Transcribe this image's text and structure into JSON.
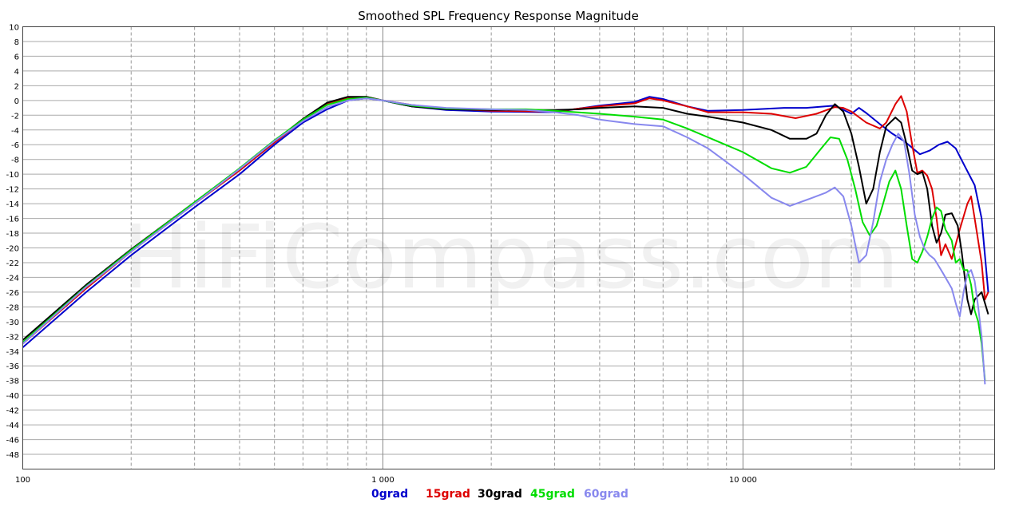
{
  "chart_data": {
    "type": "line",
    "title": "Smoothed SPL Frequency Response Magnitude",
    "watermark": "HiFiCompass.com",
    "xscale": "log",
    "xlim": [
      100,
      50000
    ],
    "ylim": [
      -50,
      10
    ],
    "y_ticks": [
      10,
      8,
      6,
      4,
      2,
      0,
      -2,
      -4,
      -6,
      -8,
      -10,
      -12,
      -14,
      -16,
      -18,
      -20,
      -22,
      -24,
      -26,
      -28,
      -30,
      -32,
      -34,
      -36,
      -38,
      -40,
      -42,
      -44,
      -46,
      -48
    ],
    "y_tick_labels": [
      "10",
      "8",
      "6",
      "4",
      "2",
      "0",
      "-2",
      "-4",
      "-6",
      "-8",
      "-10",
      "-12",
      "-14",
      "-16",
      "-18",
      "-20",
      "-22",
      "-24",
      "-26",
      "-28",
      "-30",
      "-32",
      "-34",
      "-36",
      "-38",
      "-40",
      "-42",
      "-44",
      "-46",
      "-48"
    ],
    "x_ticks": [
      100,
      1000,
      10000
    ],
    "x_tick_labels": [
      "100",
      "1 000",
      "10 000"
    ],
    "grid": true,
    "legend_placement": "bottom-center",
    "series": [
      {
        "name": "0grad",
        "color": "#0000cc",
        "points": [
          [
            100,
            -33.5
          ],
          [
            150,
            -26
          ],
          [
            200,
            -21
          ],
          [
            300,
            -14.5
          ],
          [
            400,
            -10
          ],
          [
            500,
            -6
          ],
          [
            600,
            -3
          ],
          [
            700,
            -1.2
          ],
          [
            800,
            0
          ],
          [
            900,
            0.3
          ],
          [
            1000,
            0
          ],
          [
            1200,
            -0.8
          ],
          [
            1500,
            -1.3
          ],
          [
            2000,
            -1.5
          ],
          [
            3000,
            -1.6
          ],
          [
            3500,
            -1.1
          ],
          [
            4000,
            -0.7
          ],
          [
            5000,
            -0.2
          ],
          [
            5500,
            0.5
          ],
          [
            6000,
            0.2
          ],
          [
            7000,
            -0.8
          ],
          [
            8000,
            -1.4
          ],
          [
            10000,
            -1.3
          ],
          [
            13000,
            -1
          ],
          [
            15000,
            -1
          ],
          [
            18000,
            -0.7
          ],
          [
            20000,
            -1.8
          ],
          [
            21000,
            -1
          ],
          [
            22000,
            -1.7
          ],
          [
            24000,
            -3.2
          ],
          [
            26000,
            -4.5
          ],
          [
            28000,
            -5.5
          ],
          [
            31000,
            -7.3
          ],
          [
            33000,
            -6.8
          ],
          [
            35000,
            -6
          ],
          [
            37000,
            -5.6
          ],
          [
            39000,
            -6.5
          ],
          [
            41000,
            -8.6
          ],
          [
            44000,
            -11.5
          ],
          [
            46000,
            -16
          ],
          [
            48000,
            -26
          ]
        ]
      },
      {
        "name": "15grad",
        "color": "#dd0000",
        "points": [
          [
            100,
            -33
          ],
          [
            150,
            -25.5
          ],
          [
            200,
            -20.5
          ],
          [
            300,
            -14
          ],
          [
            400,
            -9.5
          ],
          [
            500,
            -5.7
          ],
          [
            600,
            -2.7
          ],
          [
            700,
            -0.5
          ],
          [
            800,
            0.3
          ],
          [
            900,
            0.5
          ],
          [
            1000,
            0
          ],
          [
            1200,
            -0.6
          ],
          [
            1500,
            -1.1
          ],
          [
            2000,
            -1.4
          ],
          [
            3000,
            -1.5
          ],
          [
            3500,
            -1.1
          ],
          [
            4000,
            -0.8
          ],
          [
            5000,
            -0.4
          ],
          [
            5500,
            0.3
          ],
          [
            6000,
            0
          ],
          [
            7000,
            -0.8
          ],
          [
            8000,
            -1.6
          ],
          [
            10000,
            -1.6
          ],
          [
            12000,
            -1.8
          ],
          [
            14000,
            -2.4
          ],
          [
            16000,
            -1.8
          ],
          [
            18000,
            -0.9
          ],
          [
            19000,
            -1
          ],
          [
            20000,
            -1.5
          ],
          [
            22000,
            -3
          ],
          [
            24000,
            -3.8
          ],
          [
            25000,
            -3
          ],
          [
            26500,
            -0.5
          ],
          [
            27500,
            0.6
          ],
          [
            28500,
            -1.5
          ],
          [
            29500,
            -6
          ],
          [
            30500,
            -9.8
          ],
          [
            31500,
            -9.5
          ],
          [
            32500,
            -10.2
          ],
          [
            33500,
            -12
          ],
          [
            34500,
            -16
          ],
          [
            35500,
            -21
          ],
          [
            36500,
            -19.5
          ],
          [
            38000,
            -21.5
          ],
          [
            40000,
            -17.5
          ],
          [
            42000,
            -14
          ],
          [
            43000,
            -13
          ],
          [
            44000,
            -16
          ],
          [
            46000,
            -22
          ],
          [
            47000,
            -27
          ],
          [
            48000,
            -26
          ]
        ]
      },
      {
        "name": "30grad",
        "color": "#000000",
        "points": [
          [
            100,
            -32.5
          ],
          [
            150,
            -25
          ],
          [
            200,
            -20.2
          ],
          [
            300,
            -13.8
          ],
          [
            400,
            -9.3
          ],
          [
            500,
            -5.5
          ],
          [
            600,
            -2.5
          ],
          [
            700,
            -0.3
          ],
          [
            800,
            0.5
          ],
          [
            900,
            0.5
          ],
          [
            1000,
            0
          ],
          [
            1200,
            -0.8
          ],
          [
            1500,
            -1.2
          ],
          [
            2000,
            -1.3
          ],
          [
            3000,
            -1.3
          ],
          [
            3500,
            -1.2
          ],
          [
            4000,
            -1
          ],
          [
            5000,
            -0.8
          ],
          [
            6000,
            -1
          ],
          [
            7000,
            -1.8
          ],
          [
            8000,
            -2.2
          ],
          [
            10000,
            -3
          ],
          [
            12000,
            -4
          ],
          [
            13500,
            -5.2
          ],
          [
            15000,
            -5.2
          ],
          [
            16000,
            -4.5
          ],
          [
            17000,
            -2
          ],
          [
            18000,
            -0.5
          ],
          [
            19000,
            -1.5
          ],
          [
            20000,
            -4.5
          ],
          [
            21000,
            -9
          ],
          [
            22000,
            -14
          ],
          [
            23000,
            -12
          ],
          [
            24000,
            -7
          ],
          [
            25000,
            -3.5
          ],
          [
            26500,
            -2.3
          ],
          [
            27500,
            -3
          ],
          [
            28500,
            -6
          ],
          [
            29500,
            -9.5
          ],
          [
            30500,
            -10
          ],
          [
            31500,
            -9.7
          ],
          [
            32500,
            -12
          ],
          [
            33500,
            -17
          ],
          [
            34500,
            -19.3
          ],
          [
            35500,
            -18
          ],
          [
            36500,
            -15.5
          ],
          [
            38000,
            -15.3
          ],
          [
            39500,
            -17
          ],
          [
            40500,
            -20.5
          ],
          [
            42000,
            -27
          ],
          [
            43000,
            -29
          ],
          [
            44000,
            -27
          ],
          [
            46000,
            -26
          ],
          [
            47000,
            -27.5
          ],
          [
            48000,
            -29
          ]
        ]
      },
      {
        "name": "45grad",
        "color": "#00dd00",
        "points": [
          [
            100,
            -32.8
          ],
          [
            150,
            -25.2
          ],
          [
            200,
            -20.3
          ],
          [
            300,
            -13.8
          ],
          [
            400,
            -9.2
          ],
          [
            500,
            -5.4
          ],
          [
            600,
            -2.6
          ],
          [
            700,
            -0.6
          ],
          [
            800,
            0.2
          ],
          [
            900,
            0.4
          ],
          [
            1000,
            0
          ],
          [
            1200,
            -0.7
          ],
          [
            1500,
            -1.1
          ],
          [
            2000,
            -1.2
          ],
          [
            2500,
            -1.2
          ],
          [
            3000,
            -1.4
          ],
          [
            4000,
            -1.8
          ],
          [
            5000,
            -2.2
          ],
          [
            6000,
            -2.6
          ],
          [
            7000,
            -3.8
          ],
          [
            8000,
            -5
          ],
          [
            10000,
            -7
          ],
          [
            12000,
            -9.2
          ],
          [
            13500,
            -9.8
          ],
          [
            15000,
            -9
          ],
          [
            16500,
            -6.5
          ],
          [
            17500,
            -5
          ],
          [
            18500,
            -5.2
          ],
          [
            19500,
            -8
          ],
          [
            20500,
            -12
          ],
          [
            21500,
            -16.5
          ],
          [
            22500,
            -18.3
          ],
          [
            23500,
            -17
          ],
          [
            24500,
            -14
          ],
          [
            25500,
            -11
          ],
          [
            26500,
            -9.5
          ],
          [
            27500,
            -12
          ],
          [
            28500,
            -17
          ],
          [
            29500,
            -21.5
          ],
          [
            30500,
            -22
          ],
          [
            31500,
            -20.5
          ],
          [
            32500,
            -18.5
          ],
          [
            33500,
            -16
          ],
          [
            34500,
            -14.5
          ],
          [
            35500,
            -15
          ],
          [
            36500,
            -17.5
          ],
          [
            38000,
            -19
          ],
          [
            39000,
            -22
          ],
          [
            40000,
            -21.5
          ],
          [
            41000,
            -23
          ],
          [
            42000,
            -23
          ],
          [
            43000,
            -25
          ],
          [
            44000,
            -28.5
          ],
          [
            45000,
            -30
          ],
          [
            46000,
            -33
          ],
          [
            47000,
            -38
          ]
        ]
      },
      {
        "name": "60grad",
        "color": "#8888ee",
        "points": [
          [
            100,
            -33
          ],
          [
            150,
            -25.3
          ],
          [
            200,
            -20.5
          ],
          [
            300,
            -14
          ],
          [
            400,
            -9.3
          ],
          [
            500,
            -5.5
          ],
          [
            600,
            -2.8
          ],
          [
            700,
            -0.9
          ],
          [
            800,
            0
          ],
          [
            900,
            0.3
          ],
          [
            1000,
            0
          ],
          [
            1200,
            -0.6
          ],
          [
            1500,
            -1
          ],
          [
            2000,
            -1.2
          ],
          [
            2500,
            -1.3
          ],
          [
            3000,
            -1.6
          ],
          [
            3500,
            -2
          ],
          [
            4000,
            -2.6
          ],
          [
            5000,
            -3.2
          ],
          [
            6000,
            -3.5
          ],
          [
            7000,
            -5
          ],
          [
            8000,
            -6.5
          ],
          [
            10000,
            -10
          ],
          [
            12000,
            -13.2
          ],
          [
            13500,
            -14.3
          ],
          [
            15000,
            -13.5
          ],
          [
            17000,
            -12.5
          ],
          [
            18000,
            -11.8
          ],
          [
            19000,
            -13
          ],
          [
            20000,
            -17
          ],
          [
            21000,
            -22
          ],
          [
            22000,
            -21
          ],
          [
            23000,
            -16.5
          ],
          [
            24000,
            -11
          ],
          [
            25000,
            -8
          ],
          [
            26000,
            -6
          ],
          [
            27000,
            -4.5
          ],
          [
            28000,
            -5.5
          ],
          [
            29000,
            -10
          ],
          [
            30000,
            -15.5
          ],
          [
            31000,
            -18.5
          ],
          [
            32000,
            -20.2
          ],
          [
            33000,
            -21
          ],
          [
            34000,
            -21.5
          ],
          [
            35000,
            -22.5
          ],
          [
            36000,
            -23.5
          ],
          [
            37000,
            -24.5
          ],
          [
            38000,
            -25.5
          ],
          [
            39000,
            -27.5
          ],
          [
            40000,
            -29.3
          ],
          [
            41000,
            -26
          ],
          [
            42000,
            -23.5
          ],
          [
            43000,
            -23
          ],
          [
            44000,
            -24.5
          ],
          [
            45000,
            -28
          ],
          [
            46000,
            -32
          ],
          [
            47000,
            -38.5
          ]
        ]
      }
    ]
  }
}
